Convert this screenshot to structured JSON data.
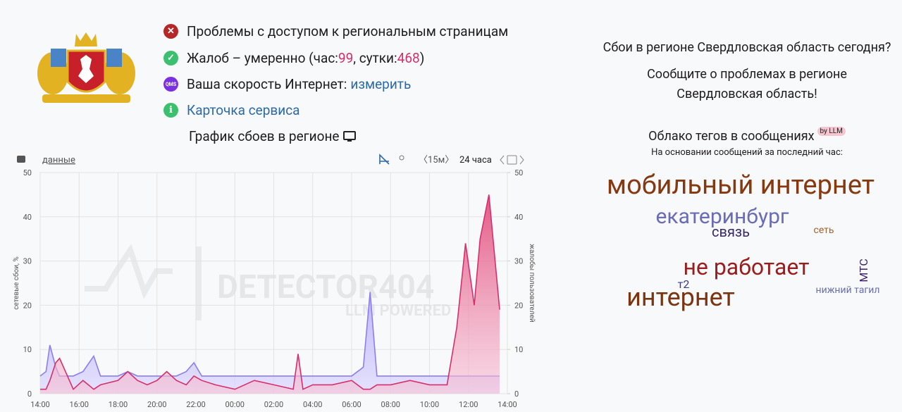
{
  "status": {
    "access": "Проблемы с доступом к региональным страницам",
    "complaints": {
      "prefix": "Жалоб – умеренно (час: ",
      "hour": 99,
      "middle": ", сутки: ",
      "day": 468,
      "suffix": ")"
    },
    "speed": {
      "label": "Ваша скорость Интернет: ",
      "link": "измерить",
      "icon": "QMS"
    },
    "card": "Карточка сервиса",
    "graph_title": "График сбоев в регионе"
  },
  "side": {
    "question": "Сбои в регионе Свердловская область сегодня?",
    "report": "Сообщите о проблемах в регионе Свердловская область!",
    "cloud_title": "Облако тегов в сообщениях",
    "badge": "by LLM",
    "cloud_subtitle": "На основании сообщений за последний час:",
    "tags": [
      {
        "text": "мобильный интернет",
        "color": "#86380f"
      },
      {
        "text": "екатеринбург",
        "color": "#6a6db3"
      },
      {
        "text": "связь",
        "color": "#3a2a68"
      },
      {
        "text": "сеть",
        "color": "#a3622a"
      },
      {
        "text": "не работает",
        "color": "#9a1d1d"
      },
      {
        "text": "МТС",
        "color": "#3a1f68"
      },
      {
        "text": "т2",
        "color": "#3b3b88"
      },
      {
        "text": "нижний тагил",
        "color": "#6a6fa8"
      },
      {
        "text": "интернет",
        "color": "#7a3510"
      }
    ]
  },
  "chart_data": {
    "type": "area",
    "toolbar": {
      "data_link": "данные",
      "interval": "〈15м〉",
      "range": "24 часа"
    },
    "watermark": "DETECTOR404",
    "watermark_sub": "LLM POWERED",
    "ylabel": "сетевые сбои, %",
    "y2label": "жалобы пользователей",
    "grid": true,
    "xlim": [
      0,
      24
    ],
    "xticks": [
      {
        "value": 0,
        "label": "14:00"
      },
      {
        "value": 2,
        "label": "16:00"
      },
      {
        "value": 4,
        "label": "18:00"
      },
      {
        "value": 6,
        "label": "20:00"
      },
      {
        "value": 8,
        "label": "22:00"
      },
      {
        "value": 10,
        "label": "00:00"
      },
      {
        "value": 12,
        "label": "02:00"
      },
      {
        "value": 14,
        "label": "04:00"
      },
      {
        "value": 16,
        "label": "06:00"
      },
      {
        "value": 18,
        "label": "08:00"
      },
      {
        "value": 20,
        "label": "10:00"
      },
      {
        "value": 22,
        "label": "12:00"
      },
      {
        "value": 24,
        "label": "14:00"
      }
    ],
    "ylim": [
      0,
      50
    ],
    "yticks": [
      0,
      10,
      20,
      30,
      40,
      50
    ],
    "y2lim": [
      0,
      50
    ],
    "y2ticks": [
      0,
      10,
      20,
      30,
      40,
      50
    ],
    "x": [
      0,
      0.3,
      0.5,
      0.8,
      1.0,
      1.3,
      1.7,
      2.2,
      2.75,
      3.1,
      4,
      4.5,
      5,
      5.5,
      6,
      6.5,
      7,
      7.5,
      7.9,
      8.3,
      9,
      10,
      11,
      12,
      13,
      13.25,
      13.5,
      14,
      15,
      16,
      16.6,
      16.95,
      17.3,
      18,
      19,
      20,
      20.9,
      21.4,
      21.85,
      22.3,
      22.6,
      23.05,
      23.6
    ],
    "series": [
      {
        "color": "#8c7ef2",
        "fill": "#c9c2fb",
        "values": [
          4,
          5,
          11,
          6,
          4,
          4,
          4,
          5,
          8.5,
          4,
          4,
          5,
          4,
          4,
          4,
          4,
          4,
          5,
          7,
          4,
          4,
          4,
          4,
          4,
          4,
          4,
          4,
          4,
          4,
          4,
          6,
          23,
          4,
          4,
          4,
          4,
          4,
          4,
          4,
          4,
          4,
          4,
          4
        ]
      },
      {
        "axis": "y2",
        "color": "#d62f6b",
        "fill": "#f08bb0",
        "values": [
          1,
          1,
          3,
          7,
          8,
          5,
          1,
          3,
          1,
          2,
          3,
          5,
          3,
          2,
          3,
          5,
          3,
          2,
          4,
          3,
          2,
          1,
          3,
          2,
          1,
          9,
          1,
          2,
          2,
          3,
          1,
          1,
          2,
          2,
          3,
          2,
          2,
          15,
          34,
          20,
          35,
          45,
          19
        ]
      }
    ]
  }
}
